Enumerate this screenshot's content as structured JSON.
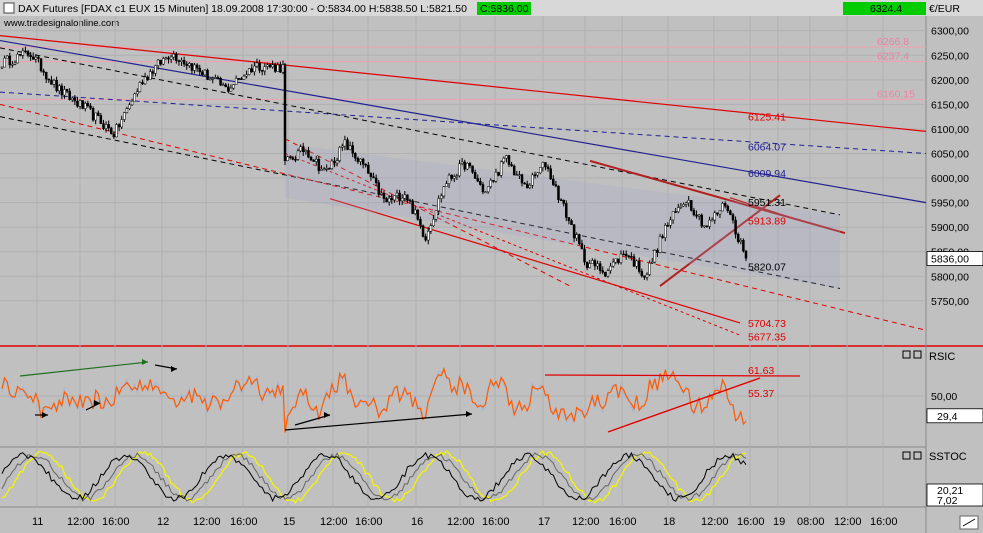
{
  "header": {
    "symbol": "DAX Futures [FDAX c1 EUX  15 Minuten]",
    "datetime": "18.09.2008 17:30:00",
    "open": "O:5834.00",
    "high": "H:5838.50",
    "low": "L:5821.50",
    "close": "C:5836.00",
    "source": "www.tradesignalonline.com",
    "unit": "€/EUR",
    "top_value": "6324.4"
  },
  "colors": {
    "background": "#c0c0c0",
    "candle_up": "#ffffff",
    "candle_down": "#000000",
    "trend_red": "#e00000",
    "trend_blue": "#202090",
    "trend_black_dashed": "#000000",
    "rsi_line": "#ff5a00",
    "rsi_ref": "#a8b4d8",
    "stoch_a": "#000000",
    "stoch_b": "#f4f400",
    "last_price_bg": "#00cc00"
  },
  "chart_data": [
    {
      "type": "candlestick",
      "ylim": [
        5660,
        6330
      ],
      "yticks": [
        "6300,00",
        "6250,00",
        "6200,00",
        "6150,00",
        "6100,00",
        "6050,00",
        "6000,00",
        "5950,00",
        "5900,00",
        "5850,00",
        "5800,00",
        "5750,00"
      ],
      "last_price_label": "5836,00",
      "horizontal_levels": [
        {
          "value": 6266.8,
          "label": "6266.8"
        },
        {
          "value": 6237.4,
          "label": "6237.4"
        },
        {
          "value": 6160.15,
          "label": "6160.15"
        }
      ],
      "line_labels": [
        {
          "value": 6125.41,
          "label": "6125.41"
        },
        {
          "value": 6064.07,
          "label": "6064.07"
        },
        {
          "value": 6009.94,
          "label": "6009.94"
        },
        {
          "value": 5951.31,
          "label": "5951.31"
        },
        {
          "value": 5913.89,
          "label": "5913.89"
        },
        {
          "value": 5820.07,
          "label": "5820.07"
        },
        {
          "value": 5704.73,
          "label": "5704.73"
        },
        {
          "value": 5677.35,
          "label": "5677.35"
        }
      ],
      "price_path_anchors": [
        6235,
        6255,
        6180,
        6140,
        6090,
        6200,
        6255,
        6220,
        6180,
        6230,
        6225,
        6030,
        6060,
        6010,
        6070,
        6020,
        5950,
        5970,
        5880,
        5990,
        6030,
        5970,
        6040,
        5980,
        6030,
        5930,
        5830,
        5810,
        5850,
        5800,
        5900,
        5960,
        5900,
        5950,
        5836
      ]
    },
    {
      "type": "line",
      "name": "RSIC",
      "yticks": [
        "50,00"
      ],
      "last_value_label": "29,4",
      "annotations": [
        "61.63",
        "55.37"
      ]
    },
    {
      "type": "line",
      "name": "SSTOC",
      "last_value_labels": [
        "20,21",
        "7,02"
      ]
    }
  ],
  "xaxis": {
    "labels": [
      "11",
      "12:00",
      "16:00",
      "12",
      "12:00",
      "16:00",
      "15",
      "12:00",
      "16:00",
      "16",
      "12:00",
      "16:00",
      "17",
      "12:00",
      "16:00",
      "18",
      "12:00",
      "16:00",
      "19",
      "08:00",
      "12:00",
      "16:00"
    ]
  }
}
